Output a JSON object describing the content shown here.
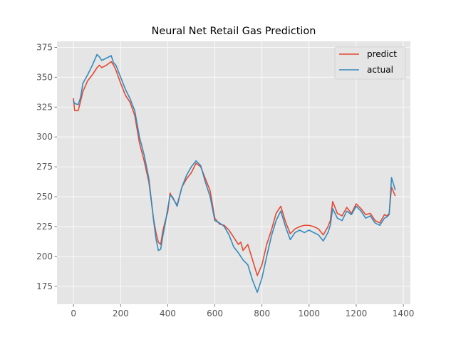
{
  "chart_data": {
    "type": "line",
    "title": "Neural Net Retail Gas Prediction",
    "xlabel": "",
    "ylabel": "",
    "xlim": [
      -70,
      1430
    ],
    "ylim": [
      160,
      380
    ],
    "xticks": [
      0,
      200,
      400,
      600,
      800,
      1000,
      1200,
      1400
    ],
    "yticks": [
      175,
      200,
      225,
      250,
      275,
      300,
      325,
      350,
      375
    ],
    "xtick_labels": [
      "0",
      "200",
      "400",
      "600",
      "800",
      "1000",
      "1200",
      "1400"
    ],
    "ytick_labels": [
      "175",
      "200",
      "225",
      "250",
      "275",
      "300",
      "325",
      "350",
      "375"
    ],
    "grid": true,
    "legend": "top-right",
    "series": [
      {
        "name": "predict",
        "color": "#e24a33",
        "x": [
          0,
          5,
          20,
          30,
          40,
          60,
          80,
          100,
          110,
          120,
          140,
          160,
          170,
          180,
          200,
          220,
          240,
          260,
          280,
          300,
          320,
          340,
          350,
          360,
          370,
          380,
          390,
          400,
          410,
          420,
          440,
          460,
          480,
          500,
          520,
          540,
          560,
          580,
          600,
          620,
          640,
          660,
          680,
          700,
          710,
          720,
          740,
          760,
          780,
          800,
          820,
          840,
          860,
          880,
          900,
          920,
          940,
          960,
          980,
          1000,
          1020,
          1040,
          1060,
          1080,
          1090,
          1100,
          1120,
          1140,
          1160,
          1180,
          1200,
          1220,
          1240,
          1260,
          1280,
          1300,
          1320,
          1330,
          1340,
          1350,
          1365
        ],
        "values": [
          332,
          322,
          322,
          330,
          338,
          347,
          352,
          358,
          360,
          358,
          360,
          363,
          360,
          356,
          345,
          335,
          329,
          318,
          295,
          280,
          262,
          231,
          220,
          212,
          210,
          222,
          230,
          237,
          253,
          249,
          243,
          258,
          265,
          270,
          278,
          275,
          265,
          255,
          232,
          227,
          226,
          222,
          216,
          210,
          212,
          205,
          210,
          197,
          184,
          193,
          210,
          222,
          236,
          242,
          229,
          219,
          223,
          225,
          226,
          226,
          225,
          223,
          218,
          225,
          230,
          246,
          236,
          234,
          241,
          236,
          244,
          240,
          235,
          236,
          230,
          228,
          235,
          234,
          236,
          258,
          251
        ]
      },
      {
        "name": "actual",
        "color": "#348abd",
        "x": [
          0,
          5,
          20,
          30,
          40,
          60,
          80,
          100,
          110,
          120,
          140,
          160,
          170,
          180,
          200,
          220,
          240,
          260,
          280,
          300,
          320,
          340,
          350,
          360,
          370,
          380,
          390,
          400,
          410,
          420,
          440,
          460,
          480,
          500,
          520,
          540,
          560,
          580,
          600,
          620,
          640,
          660,
          680,
          700,
          710,
          720,
          740,
          760,
          780,
          800,
          820,
          840,
          860,
          880,
          900,
          920,
          940,
          960,
          980,
          1000,
          1020,
          1040,
          1060,
          1080,
          1090,
          1100,
          1120,
          1140,
          1160,
          1180,
          1200,
          1220,
          1240,
          1260,
          1280,
          1300,
          1320,
          1330,
          1340,
          1350,
          1365
        ],
        "values": [
          330,
          328,
          327,
          333,
          345,
          352,
          360,
          369,
          367,
          364,
          366,
          368,
          362,
          360,
          350,
          340,
          332,
          322,
          300,
          285,
          265,
          230,
          215,
          205,
          206,
          218,
          228,
          240,
          251,
          250,
          242,
          258,
          268,
          275,
          280,
          276,
          262,
          250,
          230,
          228,
          225,
          218,
          208,
          203,
          200,
          197,
          193,
          180,
          170,
          182,
          200,
          217,
          230,
          238,
          225,
          214,
          220,
          222,
          220,
          222,
          220,
          218,
          213,
          220,
          226,
          240,
          232,
          230,
          238,
          235,
          242,
          238,
          232,
          234,
          228,
          226,
          232,
          233,
          235,
          266,
          256
        ]
      }
    ]
  }
}
